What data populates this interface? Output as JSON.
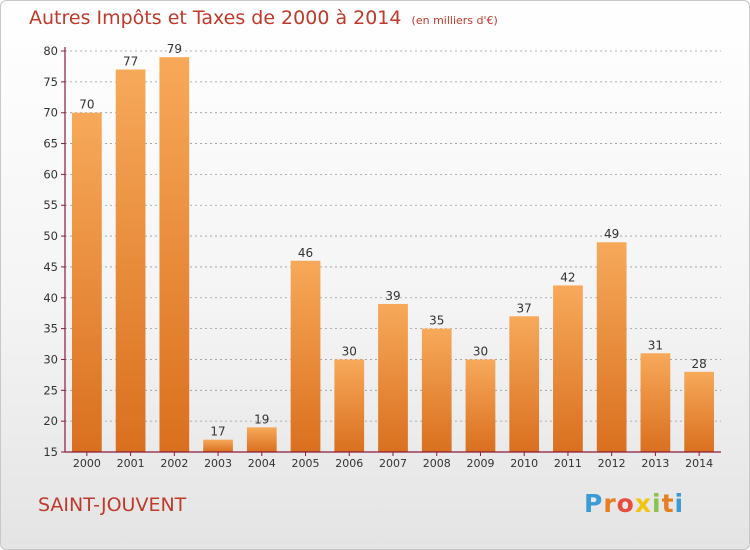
{
  "header": {
    "title": "Autres Impôts et Taxes de 2000 à 2014",
    "unit": "(en milliers d'€)"
  },
  "footer": {
    "commune": "SAINT-JOUVENT",
    "logo_text": "Proxiti",
    "logo_colors": [
      "#3a9bd5",
      "#e67e22",
      "#e74c3c",
      "#f1c40f",
      "#8bc34a",
      "#e67e22",
      "#3a9bd5"
    ]
  },
  "colors": {
    "title": "#c0392b",
    "bar_light": "#f7a95a",
    "bar_dark": "#d9701f",
    "axis": "#8b1a3a",
    "grid": "#9a9a9a",
    "text": "#333333"
  },
  "chart_data": {
    "type": "bar",
    "title": "Autres Impôts et Taxes de 2000 à 2014",
    "subtitle": "(en milliers d'€)",
    "categories": [
      "2000",
      "2001",
      "2002",
      "2003",
      "2004",
      "2005",
      "2006",
      "2007",
      "2008",
      "2009",
      "2010",
      "2011",
      "2012",
      "2013",
      "2014"
    ],
    "values": [
      70,
      77,
      79,
      17,
      19,
      46,
      30,
      39,
      35,
      30,
      37,
      42,
      49,
      31,
      28
    ],
    "ylim": [
      15,
      80
    ],
    "yticks": [
      15,
      20,
      25,
      30,
      35,
      40,
      45,
      50,
      55,
      60,
      65,
      70,
      75,
      80
    ],
    "grid": true,
    "legend": "none",
    "xlabel": "",
    "ylabel": ""
  }
}
